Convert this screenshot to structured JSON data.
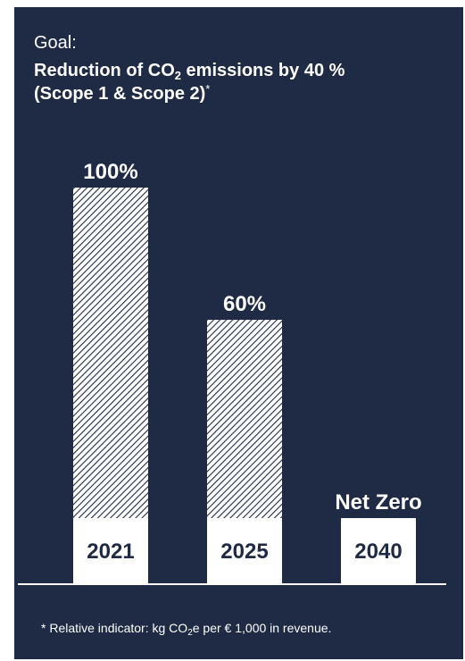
{
  "goal_label": "Goal:",
  "headline": {
    "pre": "Reduction of CO",
    "sub": "2",
    "post": " emissions by 40 %",
    "line2": "(Scope 1 & Scope 2)",
    "mark": "*"
  },
  "footnote": {
    "pre": "* Relative indicator: kg CO",
    "sub": "2",
    "post": "e per € 1,000 in revenue."
  },
  "colors": {
    "background": "#1f2a44",
    "bar": "#ffffff",
    "hatch": "#1f2a44",
    "text": "#ffffff",
    "year_text": "#1f2a44"
  },
  "chart_data": {
    "type": "bar",
    "categories": [
      "2021",
      "2025",
      "2040"
    ],
    "values": [
      100,
      60,
      0
    ],
    "value_labels": [
      "100%",
      "60%",
      "Net Zero"
    ],
    "ylim": [
      0,
      100
    ],
    "grid": false
  }
}
